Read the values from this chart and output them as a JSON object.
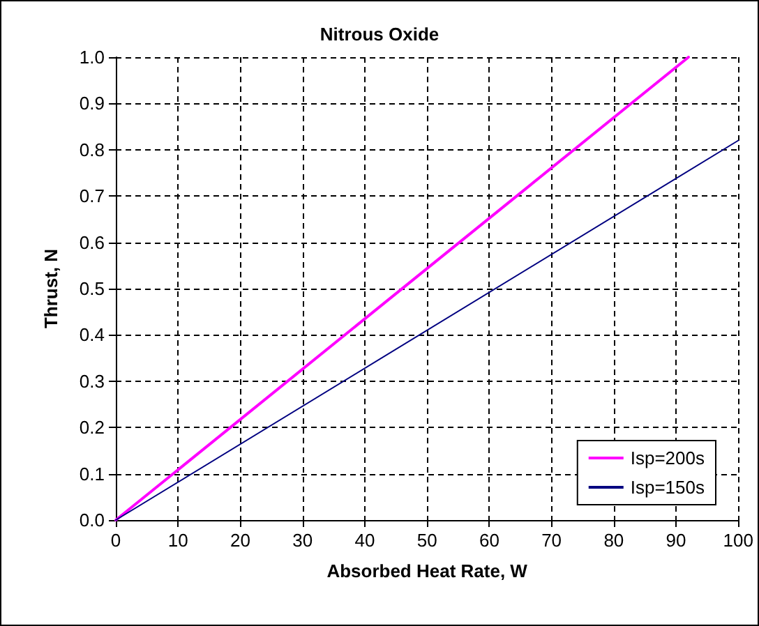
{
  "chart_data": {
    "type": "line",
    "title": "Nitrous Oxide",
    "xlabel": "Absorbed Heat Rate, W",
    "ylabel": "Thrust, N",
    "series": [
      {
        "name": "Isp=200s",
        "color": "#ff00ff",
        "x": [
          0,
          92
        ],
        "values": [
          0,
          1.0
        ]
      },
      {
        "name": "Isp=150s",
        "color": "#000080",
        "x": [
          0,
          100
        ],
        "values": [
          0,
          0.82
        ]
      }
    ],
    "xlim": [
      0,
      100
    ],
    "xticks": [
      0,
      10,
      20,
      30,
      40,
      50,
      60,
      70,
      80,
      90,
      100
    ],
    "ylim": [
      0,
      1.0
    ],
    "yticks": [
      {
        "value": 0,
        "label": "0.0"
      },
      {
        "value": 0.1,
        "label": "0.1"
      },
      {
        "value": 0.2,
        "label": "0.2"
      },
      {
        "value": 0.3,
        "label": "0.3"
      },
      {
        "value": 0.4,
        "label": "0.4"
      },
      {
        "value": 0.5,
        "label": "0.5"
      },
      {
        "value": 0.6,
        "label": "0.6"
      },
      {
        "value": 0.7,
        "label": "0.7"
      },
      {
        "value": 0.8,
        "label": "0.8"
      },
      {
        "value": 0.9,
        "label": "0.9"
      },
      {
        "value": 1.0,
        "label": "1.0"
      }
    ],
    "grid": true,
    "legend": "right",
    "marker": "none",
    "line_style": "solid"
  }
}
